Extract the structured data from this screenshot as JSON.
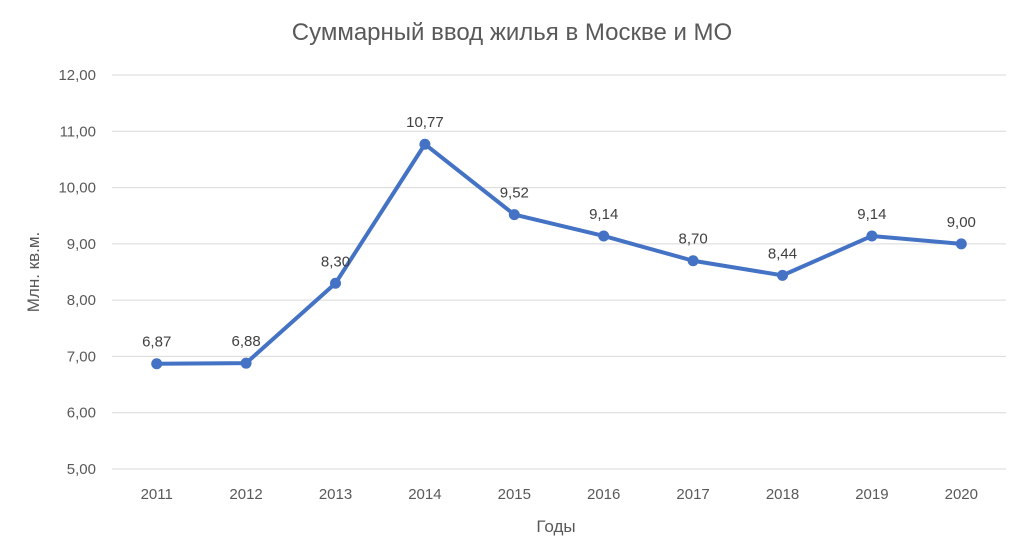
{
  "chart_data": {
    "type": "line",
    "title": "Суммарный ввод жилья в Москве и МО",
    "xlabel": "Годы",
    "ylabel": "Млн. кв.м.",
    "x": [
      "2011",
      "2012",
      "2013",
      "2014",
      "2015",
      "2016",
      "2017",
      "2018",
      "2019",
      "2020"
    ],
    "series": [
      {
        "values": [
          6.87,
          6.88,
          8.3,
          10.77,
          9.52,
          9.14,
          8.7,
          8.44,
          9.14,
          9.0
        ],
        "labels": [
          "6,87",
          "6,88",
          "8,30",
          "10,77",
          "9,52",
          "9,14",
          "8,70",
          "8,44",
          "9,14",
          "9,00"
        ],
        "color": "#4472c4"
      }
    ],
    "ylim": [
      5,
      12
    ],
    "yticks": [
      5,
      6,
      7,
      8,
      9,
      10,
      11,
      12
    ],
    "ytick_labels": [
      "5,00",
      "6,00",
      "7,00",
      "8,00",
      "9,00",
      "10,00",
      "11,00",
      "12,00"
    ],
    "grid": true,
    "legend": "none",
    "colors": {
      "line": "#4472c4",
      "grid": "#d9d9d9",
      "text": "#595959"
    }
  }
}
